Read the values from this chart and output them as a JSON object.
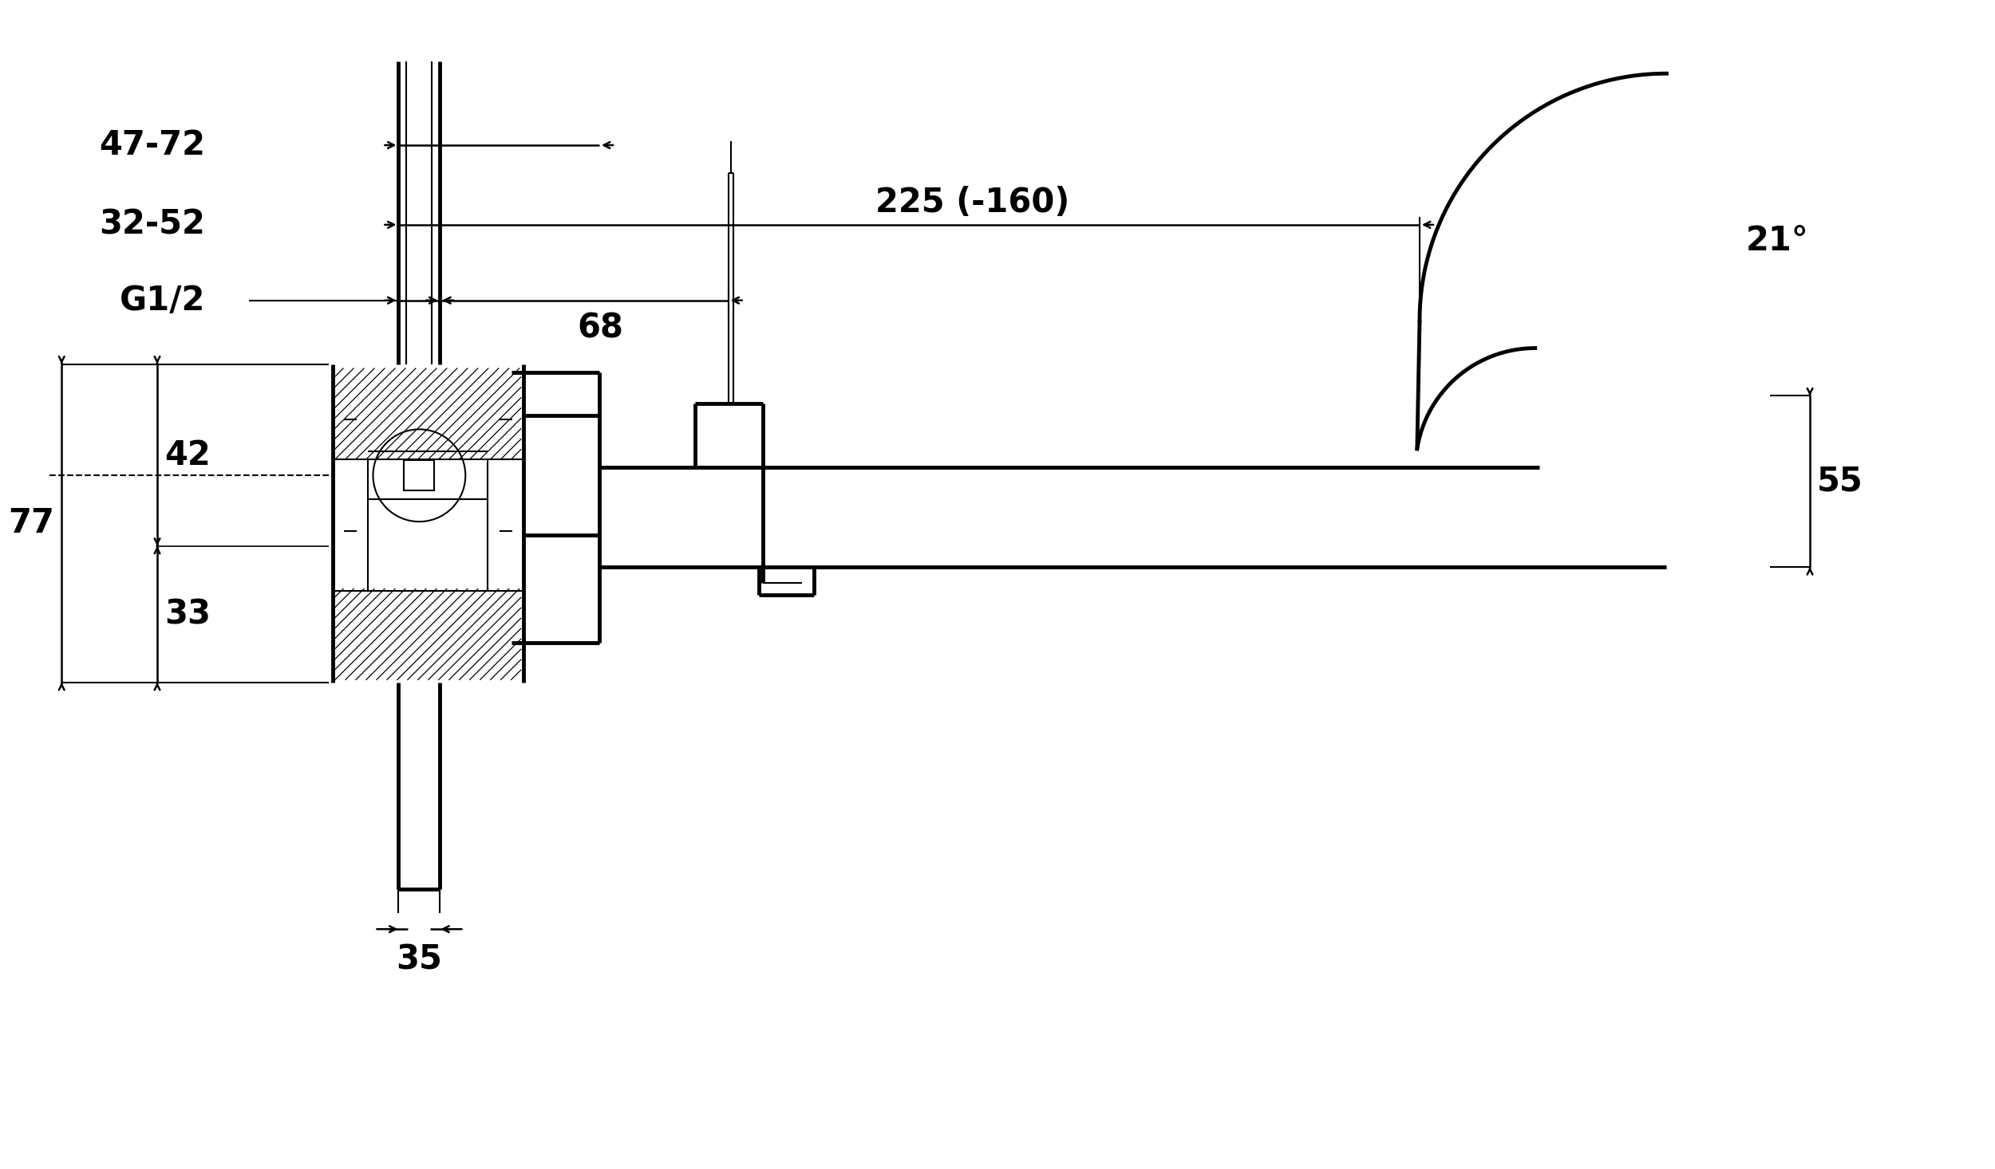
{
  "bg_color": "#ffffff",
  "line_color": "#000000",
  "lw": 2.5,
  "lw_thin": 1.5,
  "lw_thick": 3.5,
  "annotations": {
    "dim_35": "35",
    "dim_77": "77",
    "dim_33": "33",
    "dim_42": "42",
    "dim_55": "55",
    "dim_21": "21°",
    "dim_G12": "G1/2",
    "dim_68": "68",
    "dim_3252": "32-52",
    "dim_4772": "47-72",
    "dim_225": "225 (-160)"
  },
  "figsize": [
    25.0,
    14.66
  ],
  "dpi": 100
}
